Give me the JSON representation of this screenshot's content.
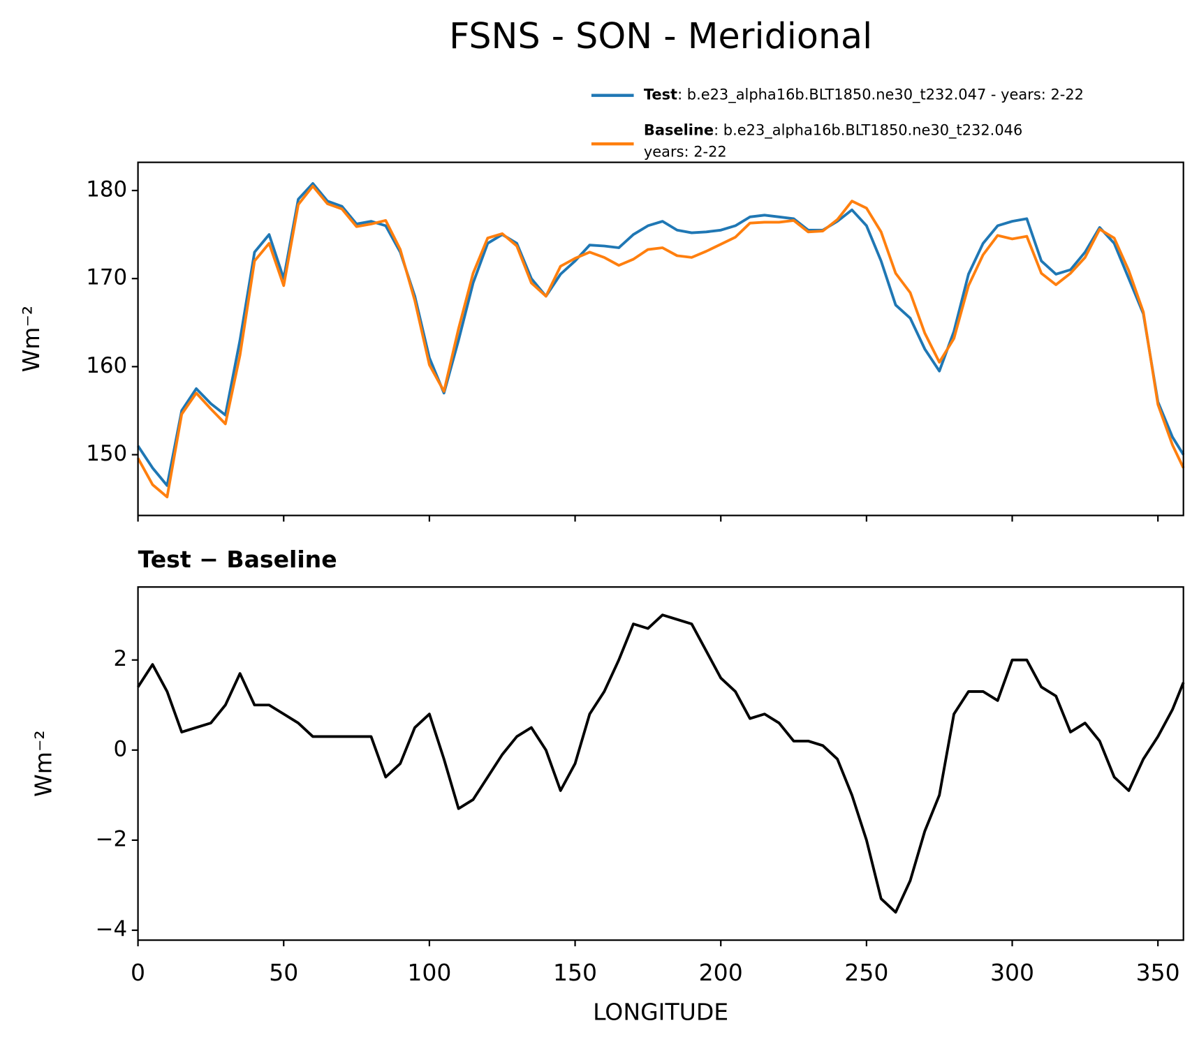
{
  "chart_data": [
    {
      "type": "line",
      "title": "FSNS - SON - Meridional",
      "ylabel": "Wm⁻²",
      "legend_loc": "upper right",
      "x": [
        0,
        5,
        10,
        15,
        20,
        25,
        30,
        35,
        40,
        45,
        50,
        55,
        60,
        65,
        70,
        75,
        80,
        85,
        90,
        95,
        100,
        105,
        110,
        115,
        120,
        125,
        130,
        135,
        140,
        145,
        150,
        155,
        160,
        165,
        170,
        175,
        180,
        185,
        190,
        195,
        200,
        205,
        210,
        215,
        220,
        225,
        230,
        235,
        240,
        245,
        250,
        255,
        260,
        265,
        270,
        275,
        280,
        285,
        290,
        295,
        300,
        305,
        310,
        315,
        320,
        325,
        330,
        335,
        340,
        345,
        350,
        355,
        358.75
      ],
      "series": [
        {
          "name": "Test",
          "description": [
            ": b.e23_alpha16b.BLT1850.ne30_t232.047 - years: 2-22"
          ],
          "color": "#1f77b4",
          "values": [
            151,
            148.5,
            146.5,
            155,
            157.5,
            155.8,
            154.5,
            163,
            173,
            175,
            170,
            179,
            180.8,
            178.8,
            178.2,
            176.2,
            176.5,
            176,
            173,
            168,
            161,
            157,
            163,
            169.5,
            174,
            175,
            174,
            170,
            168,
            170.5,
            172,
            173.8,
            173.7,
            173.5,
            175,
            176,
            176.5,
            175.5,
            175.2,
            175.3,
            175.5,
            176,
            177,
            177.2,
            177,
            176.8,
            175.5,
            175.5,
            176.5,
            177.8,
            176,
            172,
            167,
            165.5,
            162,
            159.5,
            164,
            170.5,
            174,
            176,
            176.5,
            176.8,
            172,
            170.5,
            171,
            173,
            175.8,
            174,
            170,
            166,
            156,
            152,
            150
          ]
        },
        {
          "name": "Baseline",
          "description": [
            ": b.e23_alpha16b.BLT1850.ne30_t232.046",
            "years: 2-22"
          ],
          "color": "#ff7f0e",
          "values": [
            149.6,
            146.6,
            145.2,
            154.6,
            157.0,
            155.2,
            153.5,
            161.3,
            172.0,
            174.0,
            169.2,
            178.4,
            180.5,
            178.5,
            177.9,
            175.9,
            176.2,
            176.6,
            173.3,
            167.5,
            160.2,
            157.2,
            164.3,
            170.6,
            174.6,
            175.1,
            173.7,
            169.5,
            168.0,
            171.4,
            172.3,
            173.0,
            172.4,
            171.5,
            172.2,
            173.3,
            173.5,
            172.6,
            172.4,
            173.1,
            173.9,
            174.7,
            176.3,
            176.4,
            176.4,
            176.6,
            175.3,
            175.4,
            176.7,
            178.8,
            178.0,
            175.3,
            170.6,
            168.4,
            163.8,
            160.5,
            163.2,
            169.2,
            172.7,
            174.9,
            174.5,
            174.8,
            170.6,
            169.3,
            170.6,
            172.4,
            175.6,
            174.6,
            170.9,
            166.2,
            155.7,
            151.1,
            148.5
          ]
        }
      ],
      "xlim": [
        0,
        358.75
      ],
      "ylim": [
        143.1,
        183.2
      ],
      "yticks": [
        150,
        160,
        170,
        180
      ]
    },
    {
      "type": "line",
      "subtitle": "Test − Baseline",
      "ylabel": "Wm⁻²",
      "xlabel": "LONGITUDE",
      "x": [
        0,
        5,
        10,
        15,
        20,
        25,
        30,
        35,
        40,
        45,
        50,
        55,
        60,
        65,
        70,
        75,
        80,
        85,
        90,
        95,
        100,
        105,
        110,
        115,
        120,
        125,
        130,
        135,
        140,
        145,
        150,
        155,
        160,
        165,
        170,
        175,
        180,
        185,
        190,
        195,
        200,
        205,
        210,
        215,
        220,
        225,
        230,
        235,
        240,
        245,
        250,
        255,
        260,
        265,
        270,
        275,
        280,
        285,
        290,
        295,
        300,
        305,
        310,
        315,
        320,
        325,
        330,
        335,
        340,
        345,
        350,
        355,
        358.75
      ],
      "series": [
        {
          "color": "#000000",
          "values": [
            1.4,
            1.9,
            1.3,
            0.4,
            0.5,
            0.6,
            1.0,
            1.7,
            1.0,
            1.0,
            0.8,
            0.6,
            0.3,
            0.3,
            0.3,
            0.3,
            0.3,
            -0.6,
            -0.3,
            0.5,
            0.8,
            -0.2,
            -1.3,
            -1.1,
            -0.6,
            -0.1,
            0.3,
            0.5,
            0,
            -0.9,
            -0.3,
            0.8,
            1.3,
            2.0,
            2.8,
            2.7,
            3.0,
            2.9,
            2.8,
            2.2,
            1.6,
            1.3,
            0.7,
            0.8,
            0.6,
            0.2,
            0.2,
            0.1,
            -0.2,
            -1.0,
            -2.0,
            -3.3,
            -3.6,
            -2.9,
            -1.8,
            -1.0,
            0.8,
            1.3,
            1.3,
            1.1,
            2.0,
            2.0,
            1.4,
            1.2,
            0.4,
            0.6,
            0.2,
            -0.6,
            -0.9,
            -0.2,
            0.3,
            0.9,
            1.5
          ]
        }
      ],
      "xlim": [
        0,
        358.75
      ],
      "ylim": [
        -4.22,
        3.62
      ],
      "xticks": [
        0,
        50,
        100,
        150,
        200,
        250,
        300,
        350
      ],
      "yticks": [
        {
          "value": -4,
          "label": "−4"
        },
        {
          "value": -2,
          "label": "−2"
        },
        0,
        2
      ]
    }
  ]
}
